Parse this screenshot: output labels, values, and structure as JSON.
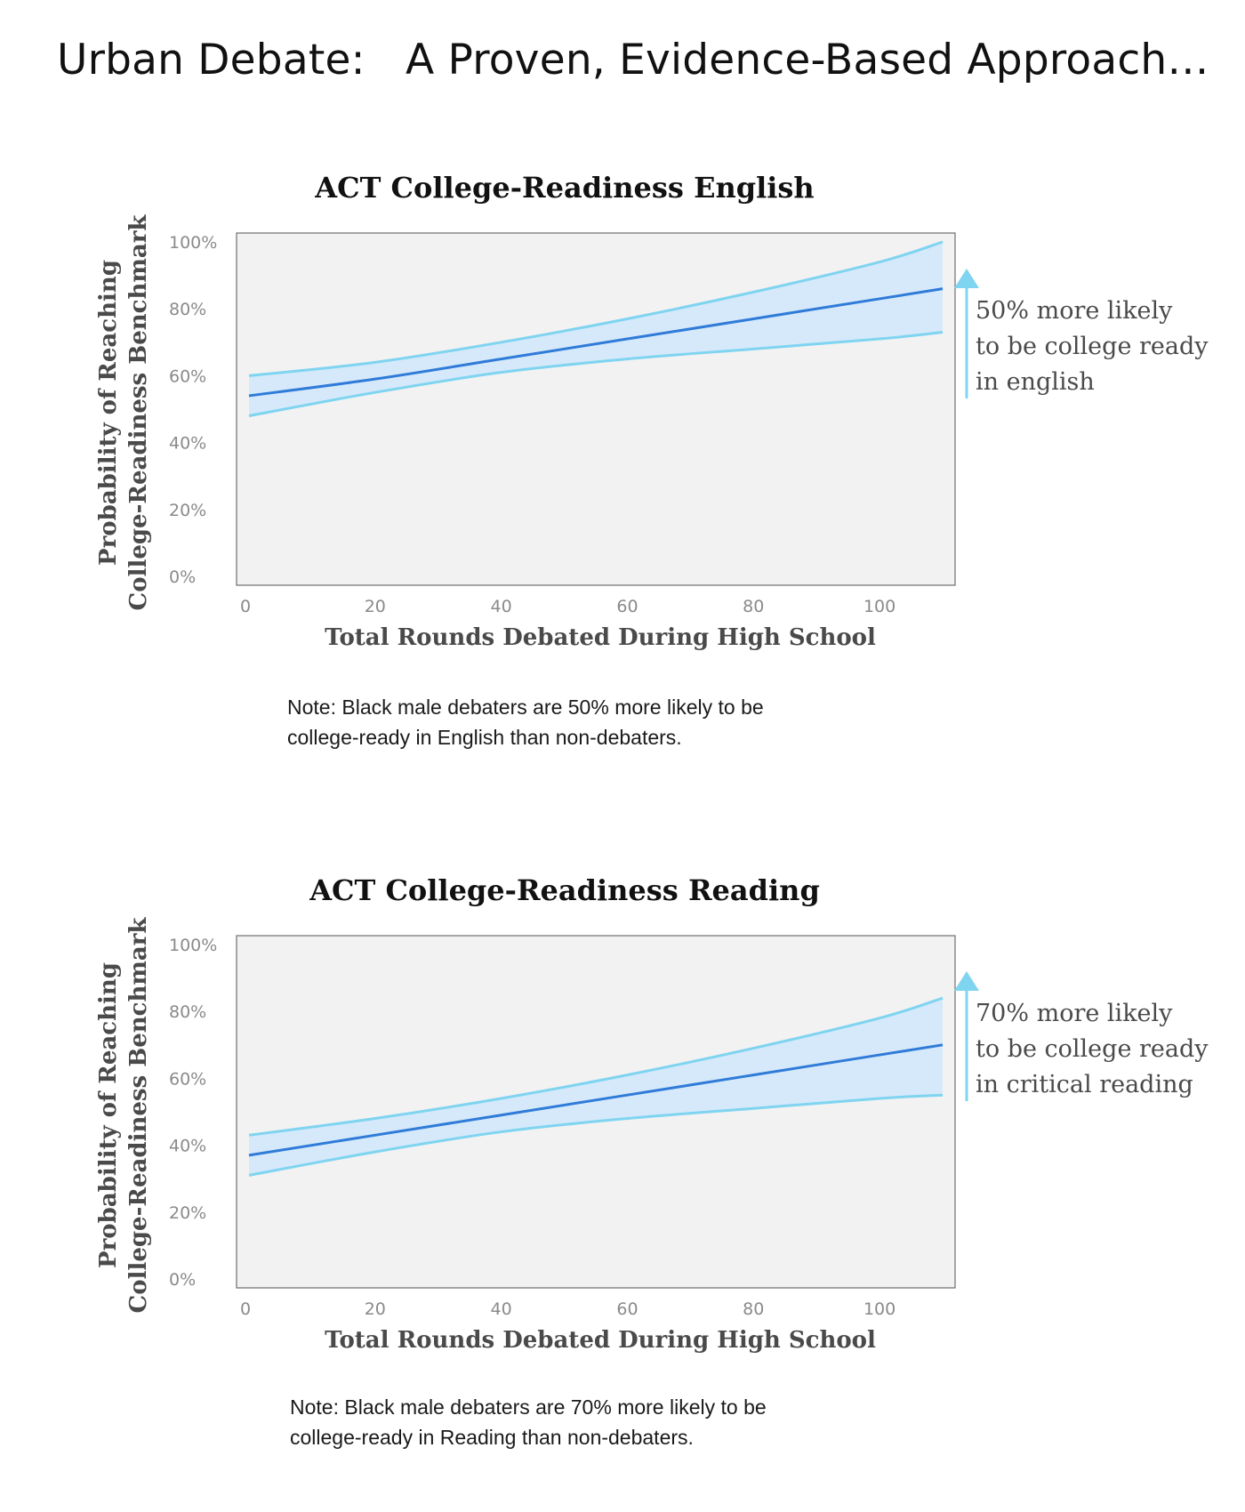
{
  "page": {
    "title": "Urban Debate:   A Proven, Evidence-Based Approach…"
  },
  "colors": {
    "plot_background": "#f2f2f2",
    "plot_border": "#6e6e6e",
    "band_fill": "#d6e9fb",
    "band_edge": "#7fd4f0",
    "mean_line": "#2f7bd8",
    "arrow": "#7fd4f0"
  },
  "chart_data": [
    {
      "type": "line",
      "title": "ACT College-Readiness English",
      "xlabel": "Total Rounds Debated During High School",
      "ylabel_lines": [
        "Probability of Reaching",
        "College-Readiness Benchmark"
      ],
      "x_ticks": [
        "0",
        "20",
        "40",
        "60",
        "80",
        "100"
      ],
      "y_ticks": [
        "0%",
        "20%",
        "40%",
        "60%",
        "80%",
        "100%"
      ],
      "xlim": [
        0,
        110
      ],
      "ylim": [
        0,
        100
      ],
      "grid": false,
      "x": [
        0,
        20,
        40,
        60,
        80,
        100,
        110
      ],
      "series": [
        {
          "role": "mean",
          "values": [
            54,
            59,
            65,
            71,
            77,
            83,
            86
          ]
        },
        {
          "role": "upper",
          "values": [
            60,
            64,
            70,
            77,
            85,
            94,
            100
          ]
        },
        {
          "role": "lower",
          "values": [
            48,
            55,
            61,
            65,
            68,
            71,
            73
          ]
        }
      ],
      "annotation": {
        "lines": [
          "50% more likely",
          "to be college ready",
          "in english"
        ],
        "arrow": "up"
      },
      "note_lines": [
        "Note: Black male debaters are 50% more likely to be",
        "college-ready in English than non-debaters."
      ]
    },
    {
      "type": "line",
      "title": "ACT College-Readiness Reading",
      "xlabel": "Total Rounds Debated During High School",
      "ylabel_lines": [
        "Probability of Reaching",
        "College-Readiness Benchmark"
      ],
      "x_ticks": [
        "0",
        "20",
        "40",
        "60",
        "80",
        "100"
      ],
      "y_ticks": [
        "0%",
        "20%",
        "40%",
        "60%",
        "80%",
        "100%"
      ],
      "xlim": [
        0,
        110
      ],
      "ylim": [
        0,
        100
      ],
      "grid": false,
      "x": [
        0,
        20,
        40,
        60,
        80,
        100,
        110
      ],
      "series": [
        {
          "role": "mean",
          "values": [
            37,
            43,
            49,
            55,
            61,
            67,
            70
          ]
        },
        {
          "role": "upper",
          "values": [
            43,
            48,
            54,
            61,
            69,
            78,
            84
          ]
        },
        {
          "role": "lower",
          "values": [
            31,
            38,
            44,
            48,
            51,
            54,
            55
          ]
        }
      ],
      "annotation": {
        "lines": [
          "70% more likely",
          "to be college ready",
          "in critical reading"
        ],
        "arrow": "up"
      },
      "note_lines": [
        "Note: Black male debaters are 70% more likely to be",
        "college-ready in Reading than non-debaters."
      ]
    }
  ]
}
